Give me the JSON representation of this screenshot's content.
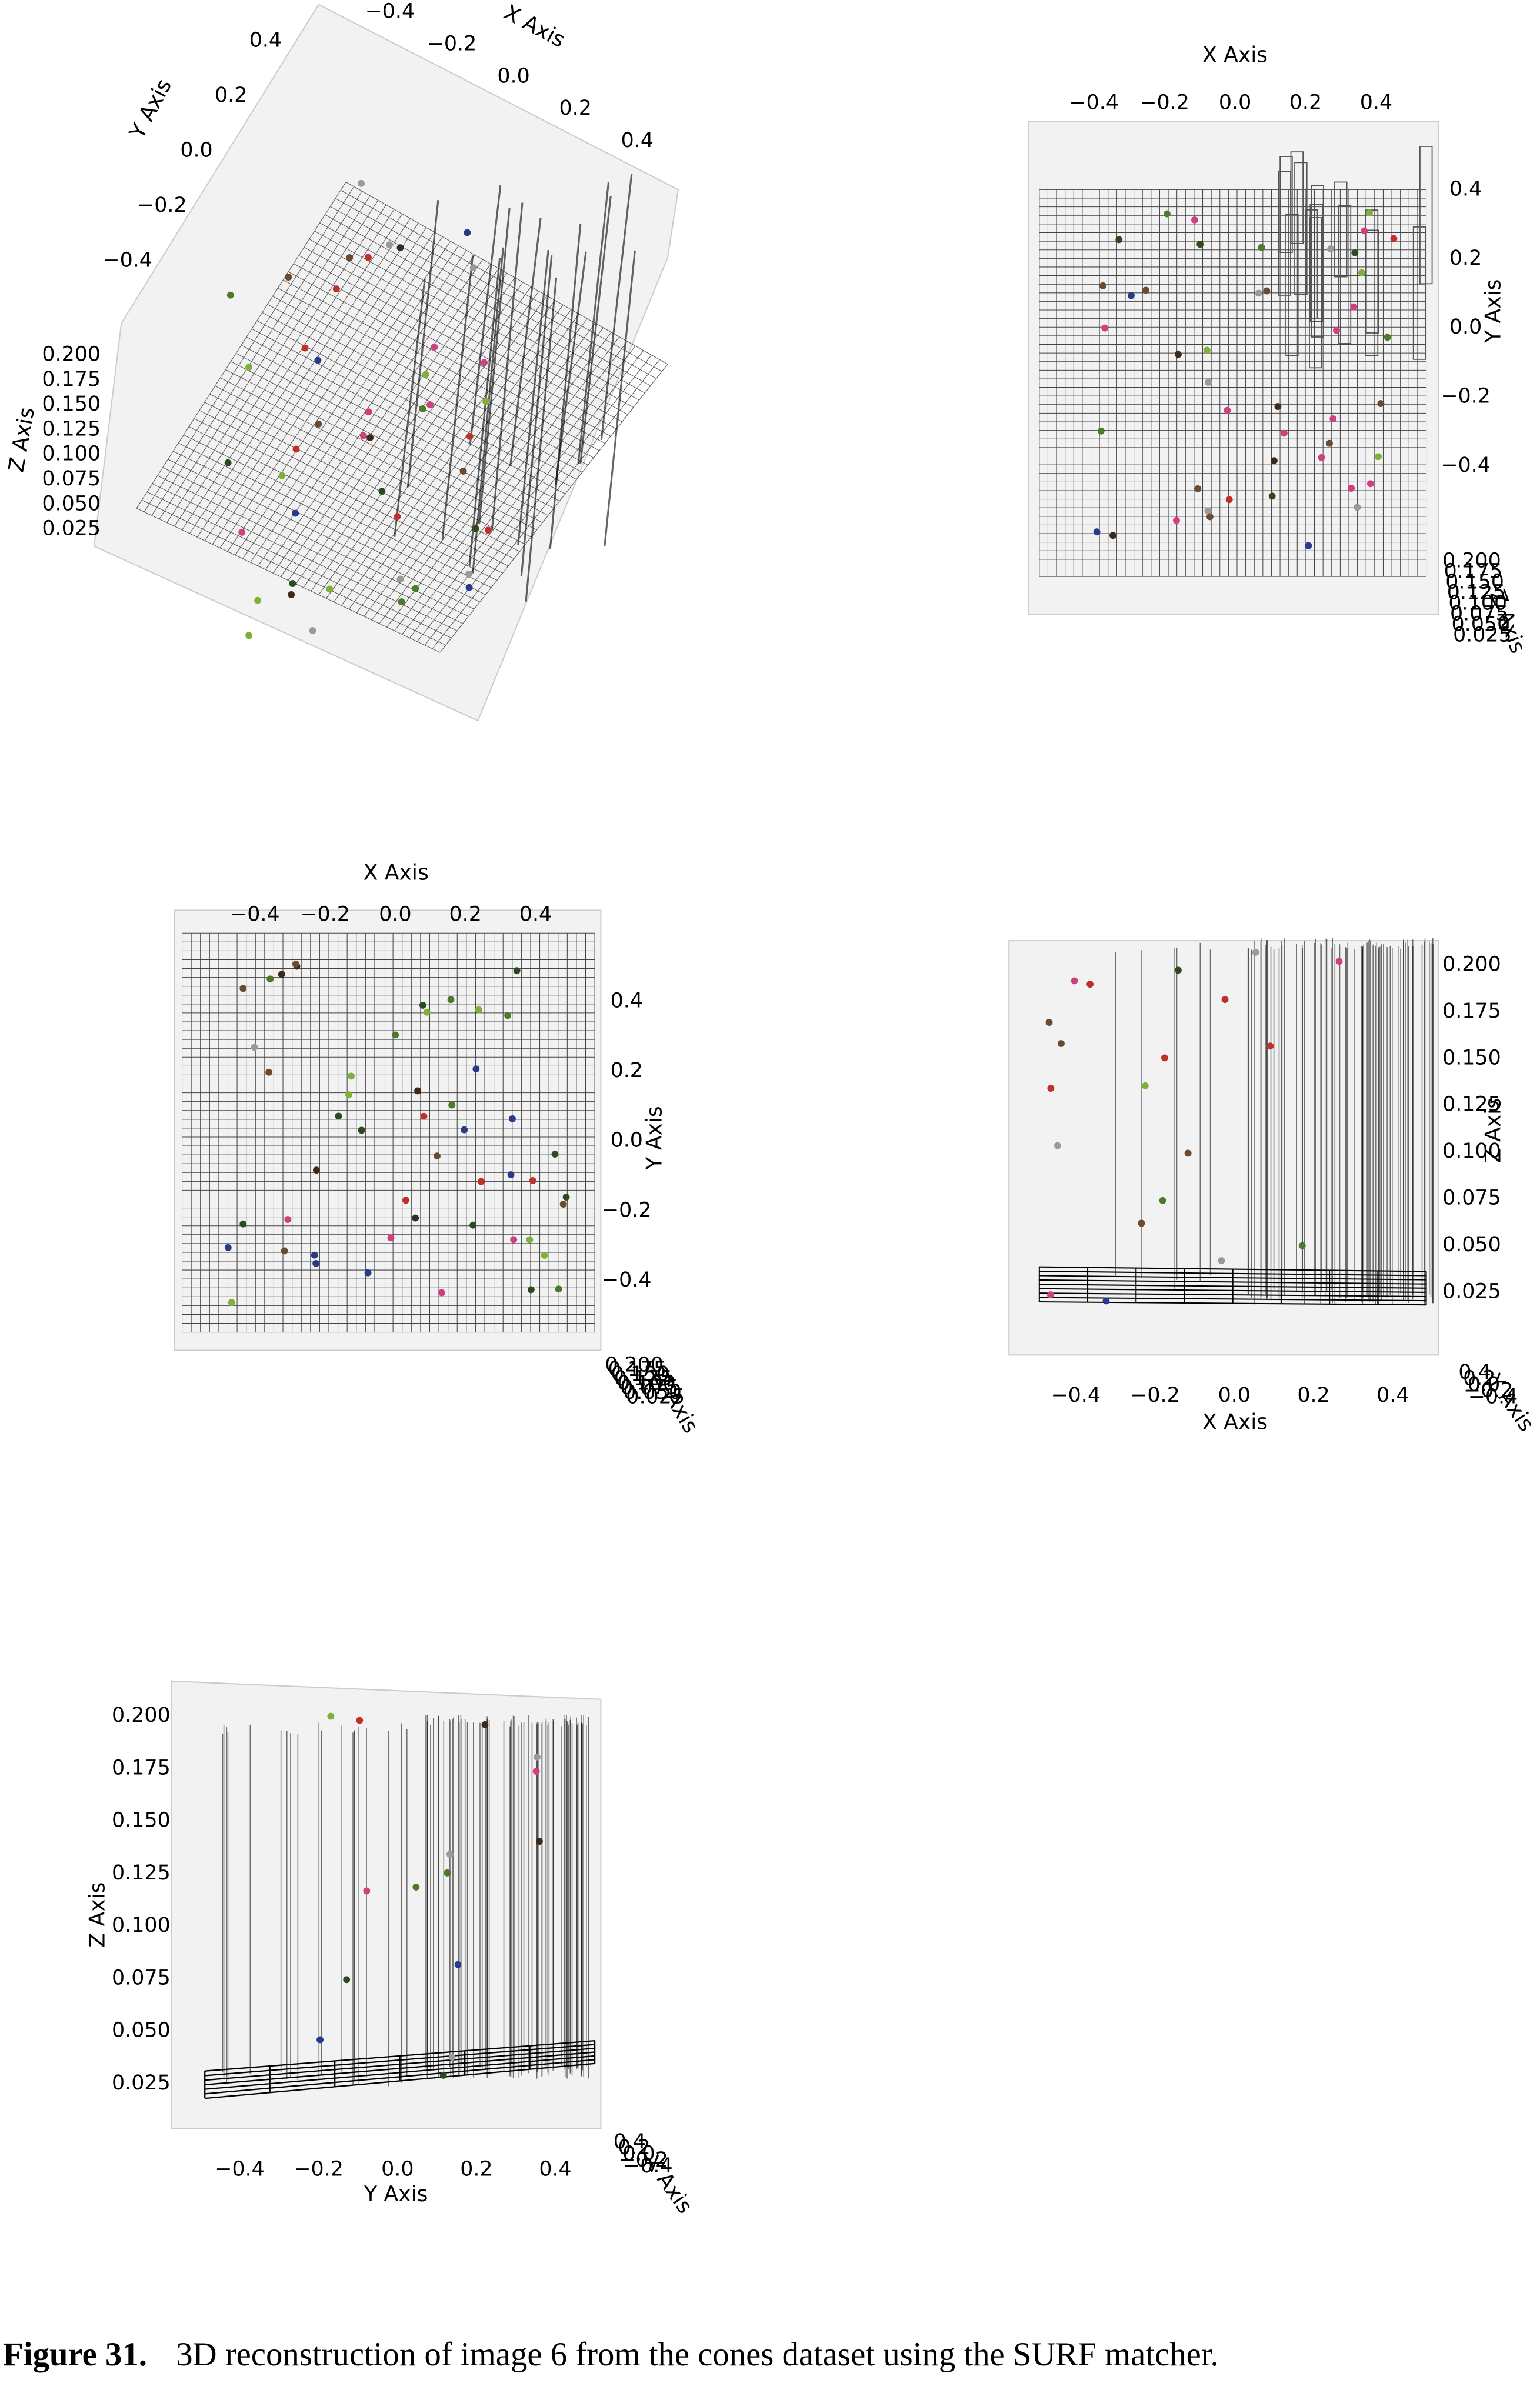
{
  "figure": {
    "panels": [
      {
        "x_axis": {
          "title": "X Axis",
          "ticks": [
            "−0.4",
            "−0.2",
            "0.0",
            "0.2",
            "0.4"
          ]
        },
        "y_axis": {
          "title": "Y Axis",
          "ticks": [
            "0.4",
            "0.2",
            "0.0",
            "−0.2",
            "−0.4"
          ]
        },
        "z_axis": {
          "title": "Z Axis",
          "ticks": [
            "0.200",
            "0.175",
            "0.150",
            "0.125",
            "0.100",
            "0.075",
            "0.050",
            "0.025"
          ]
        }
      },
      {
        "x_axis": {
          "title": "X Axis",
          "ticks": [
            "−0.4",
            "−0.2",
            "0.0",
            "0.2",
            "0.4"
          ]
        },
        "y_axis": {
          "title": "Y Axis",
          "ticks": [
            "0.4",
            "0.2",
            "0.0",
            "−0.2",
            "−0.4"
          ]
        },
        "z_axis": {
          "title": "Z Axis",
          "ticks": [
            "0.200",
            "0.175",
            "0.150",
            "0.125",
            "0.100",
            "0.075",
            "0.050",
            "0.025"
          ]
        }
      },
      {
        "x_axis": {
          "title": "X Axis",
          "ticks": [
            "−0.4",
            "−0.2",
            "0.0",
            "0.2",
            "0.4"
          ]
        },
        "y_axis": {
          "title": "Y Axis",
          "ticks": [
            "0.4",
            "0.2",
            "0.0",
            "−0.2",
            "−0.4"
          ]
        },
        "z_axis": {
          "title": "Z Axis",
          "ticks": [
            "0.200",
            "0.175",
            "0.150",
            "0.125",
            "0.100",
            "0.075",
            "0.050",
            "0.025"
          ]
        }
      },
      {
        "x_axis": {
          "title": "X Axis",
          "ticks": [
            "−0.4",
            "−0.2",
            "0.0",
            "0.2",
            "0.4"
          ]
        },
        "y_axis": {
          "title": "Y Axis",
          "ticks": [
            "0.4",
            "0.2",
            "0.0",
            "−0.2",
            "−0.4"
          ]
        },
        "z_axis": {
          "title": "Z Axis",
          "ticks": [
            "0.200",
            "0.175",
            "0.150",
            "0.125",
            "0.100",
            "0.075",
            "0.050",
            "0.025"
          ]
        }
      },
      {
        "x_axis": {
          "title": "X Axis",
          "ticks": [
            "0.4",
            "0.2",
            "0.0",
            "−0.2",
            "−0.4"
          ]
        },
        "y_axis": {
          "title": "Y Axis",
          "ticks": [
            "−0.4",
            "−0.2",
            "0.0",
            "0.2",
            "0.4"
          ]
        },
        "z_axis": {
          "title": "Z Axis",
          "ticks": [
            "0.200",
            "0.175",
            "0.150",
            "0.125",
            "0.100",
            "0.075",
            "0.050",
            "0.025"
          ]
        }
      }
    ],
    "caption": {
      "label": "Figure 31.",
      "text": "3D reconstruction of image 6 from the cones dataset using the SURF matcher."
    }
  }
}
